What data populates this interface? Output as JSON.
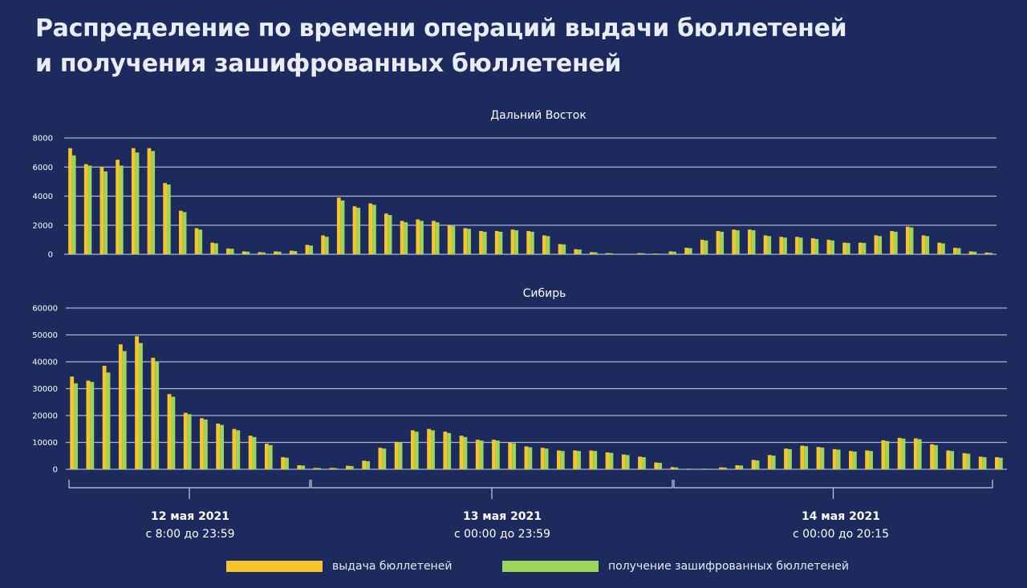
{
  "slide": {
    "title_line1": "Распределение по времени операций выдачи бюллетеней",
    "title_line2": "и получения зашифрованных бюллетеней"
  },
  "colors": {
    "background": "#1c2a5e",
    "issued": "#f7c52b",
    "received": "#9bd65a",
    "grid": "#c7cde0"
  },
  "periods": [
    {
      "date": "12 мая 2021",
      "range": "с 8:00 до 23:59"
    },
    {
      "date": "13 мая 2021",
      "range": "с 00:00 до 23:59"
    },
    {
      "date": "14 мая 2021",
      "range": "с 00:00 до 20:15"
    }
  ],
  "legend": [
    {
      "label": "выдача бюллетеней",
      "color": "#f7c52b"
    },
    {
      "label": "получение зашифрованных бюллетеней",
      "color": "#9bd65a"
    }
  ],
  "chart_data": [
    {
      "type": "bar",
      "title": "Дальний Восток",
      "ylim": [
        0,
        8000
      ],
      "yticks": [
        "0",
        "2000",
        "4000",
        "6000",
        "8000"
      ],
      "grid": true,
      "series": [
        {
          "name": "выдача бюллетеней",
          "values": [
            7300,
            6200,
            6000,
            6500,
            7300,
            7300,
            4900,
            3000,
            1800,
            800,
            400,
            200,
            150,
            200,
            250,
            650,
            1300,
            3900,
            3300,
            3500,
            2800,
            2300,
            2400,
            2300,
            2000,
            1800,
            1600,
            1600,
            1700,
            1600,
            1300,
            700,
            350,
            150,
            80,
            0,
            80,
            50,
            200,
            450,
            1000,
            1600,
            1700,
            1700,
            1300,
            1200,
            1200,
            1100,
            1000,
            800,
            800,
            1300,
            1600,
            1900,
            1300,
            800,
            450,
            200,
            120
          ]
        },
        {
          "name": "получение зашифрованных бюллетеней",
          "values": [
            6800,
            6100,
            5700,
            6100,
            7000,
            7100,
            4800,
            2900,
            1700,
            750,
            380,
            180,
            130,
            180,
            220,
            600,
            1200,
            3700,
            3200,
            3400,
            2700,
            2200,
            2300,
            2200,
            1950,
            1750,
            1550,
            1550,
            1650,
            1550,
            1250,
            680,
            330,
            140,
            70,
            0,
            70,
            40,
            180,
            420,
            950,
            1550,
            1650,
            1650,
            1250,
            1150,
            1150,
            1050,
            950,
            780,
            780,
            1250,
            1550,
            1850,
            1250,
            750,
            420,
            180,
            100
          ]
        }
      ]
    },
    {
      "type": "bar",
      "title": "Сибирь",
      "ylim": [
        0,
        60000
      ],
      "yticks": [
        "0",
        "10000",
        "20000",
        "30000",
        "40000",
        "50000",
        "60000"
      ],
      "grid": true,
      "series": [
        {
          "name": "выдача бюллетеней",
          "values": [
            34500,
            33000,
            38500,
            46500,
            49500,
            41500,
            28000,
            21000,
            19000,
            17000,
            15000,
            12500,
            9500,
            4500,
            1500,
            500,
            500,
            1300,
            3200,
            8000,
            10200,
            14500,
            15000,
            14000,
            12500,
            11000,
            11000,
            10000,
            8500,
            8000,
            7000,
            7000,
            7000,
            6300,
            5500,
            4700,
            2500,
            800,
            200,
            200,
            700,
            1500,
            3500,
            5300,
            7700,
            8800,
            8300,
            7500,
            6800,
            7000,
            10800,
            11700,
            11500,
            9300,
            7000,
            6000,
            4700,
            4500
          ]
        },
        {
          "name": "получение зашифрованных бюллетеней",
          "values": [
            32000,
            32500,
            36000,
            44000,
            47000,
            40000,
            27000,
            20500,
            18500,
            16500,
            14500,
            12000,
            9000,
            4300,
            1400,
            450,
            450,
            1200,
            3000,
            7700,
            9900,
            14000,
            14500,
            13500,
            12000,
            10700,
            10700,
            9700,
            8200,
            7700,
            6800,
            6800,
            6800,
            6100,
            5300,
            4500,
            2400,
            700,
            150,
            150,
            650,
            1400,
            3300,
            5100,
            7500,
            8600,
            8100,
            7300,
            6600,
            6800,
            10500,
            11400,
            11200,
            9000,
            6800,
            5800,
            4500,
            4300
          ]
        }
      ]
    }
  ]
}
